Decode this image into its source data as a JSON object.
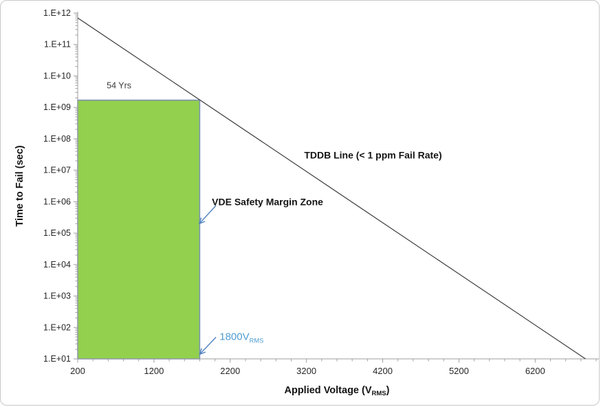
{
  "chart_data": {
    "type": "line",
    "title": "",
    "ylabel": "Time to Fail (sec)",
    "xlabel": {
      "text": "Applied Voltage (V",
      "sub": "RMS",
      "suffix": ")"
    },
    "x_axis": {
      "scale": "linear",
      "min": 200,
      "max": 7000,
      "major_tick_step": 1000,
      "minor_tick_step": 200,
      "major_tick_labels": [
        "200",
        "1200",
        "2200",
        "3200",
        "4200",
        "5200",
        "6200"
      ]
    },
    "y_axis": {
      "scale": "log10",
      "min_exp": 1,
      "max_exp": 12,
      "tick_labels": [
        "1.E+01",
        "1.E+02",
        "1.E+03",
        "1.E+04",
        "1.E+05",
        "1.E+06",
        "1.E+07",
        "1.E+08",
        "1.E+09",
        "1.E+10",
        "1.E+11",
        "1.E+12"
      ]
    },
    "series": [
      {
        "name": "TDDB Line (< 1 ppm Fail Rate)",
        "type": "line",
        "color": "#3b3b3b",
        "points": [
          [
            200,
            700000000000.0
          ],
          [
            6860,
            10
          ]
        ]
      }
    ],
    "zone": {
      "label": "VDE Safety Margin Zone",
      "x_range": [
        200,
        1800
      ],
      "y_range": [
        10,
        1700000000.0
      ],
      "fill": "#92D04E",
      "border": "#7C93B5"
    },
    "annotations": [
      {
        "id": "years-label",
        "text": "54 Yrs",
        "x": 580,
        "y": 5000000000.0,
        "color": "#3a3a3a",
        "bold": false,
        "size": 12.5
      },
      {
        "id": "tddb-label",
        "text": "TDDB Line (< 1 ppm Fail Rate)",
        "x": 3170,
        "y": 30000000.0,
        "color": "#141414",
        "bold": true,
        "size": 14
      },
      {
        "id": "vde-label",
        "text": "VDE Safety Margin Zone",
        "x": 1960,
        "y": 1000000.0,
        "color": "#141414",
        "bold": true,
        "size": 14
      },
      {
        "id": "vrms-label",
        "text": "1800V",
        "sub": "RMS",
        "x": 2060,
        "y": 52,
        "color": "#4E9CD1",
        "bold": false,
        "size": 15
      }
    ],
    "arrows": [
      {
        "id": "vde-arrow",
        "from": [
          2010,
          740000
        ],
        "to": [
          1795,
          200000
        ],
        "color": "#4F81BD"
      },
      {
        "id": "vrms-arrow",
        "from": [
          2010,
          48
        ],
        "to": [
          1800,
          14
        ],
        "color": "#4F81BD"
      }
    ],
    "colors": {
      "axis": "#9e9e9e",
      "tick_label": "#262626",
      "axis_title": "#141414",
      "background": "#ffffff"
    },
    "layout_hints": {
      "grid": false,
      "legend": "none"
    }
  }
}
